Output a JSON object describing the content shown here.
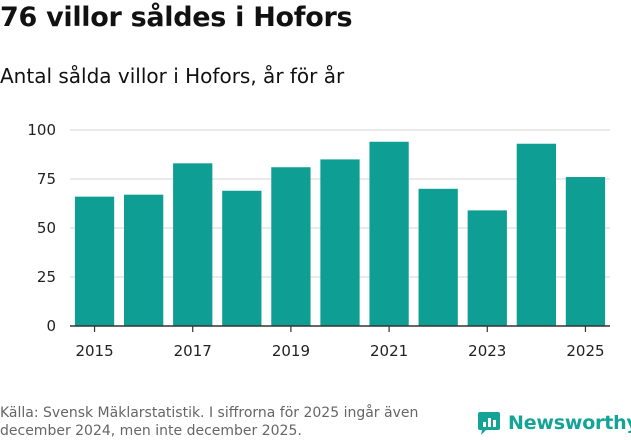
{
  "title": "76 villor såldes i Hofors",
  "subtitle": "Antal sålda villor i Hofors, år för år",
  "source": "Källa: Svensk Mäklarstatistik. I siffrorna för 2025 ingår även december 2024, men inte december 2025.",
  "brand": {
    "name": "Newsworthy",
    "icon": "newsworthy-logo-icon",
    "color": "#14a497"
  },
  "colors": {
    "bar": "#0f9e93",
    "grid": "#dddddd",
    "axis": "#333333"
  },
  "chart_data": {
    "type": "bar",
    "title": "76 villor såldes i Hofors",
    "xlabel": "",
    "ylabel": "",
    "categories": [
      "2015",
      "2016",
      "2017",
      "2018",
      "2019",
      "2020",
      "2021",
      "2022",
      "2023",
      "2024",
      "2025"
    ],
    "values": [
      66,
      67,
      83,
      69,
      81,
      85,
      94,
      70,
      59,
      93,
      76
    ],
    "xticks": [
      "2015",
      "2017",
      "2019",
      "2021",
      "2023",
      "2025"
    ],
    "yticks": [
      0,
      25,
      50,
      75,
      100
    ],
    "ylim": [
      0,
      100
    ],
    "grid": true
  }
}
